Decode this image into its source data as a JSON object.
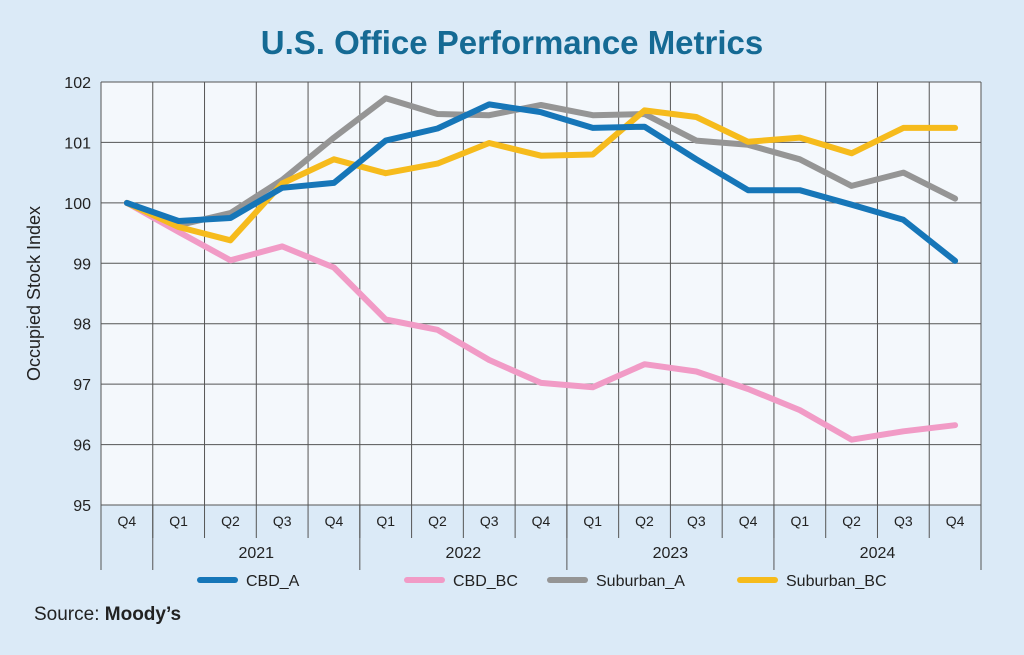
{
  "title": "U.S. Office Performance Metrics",
  "source": {
    "label": "Source:",
    "name": "Moody’s"
  },
  "chart_data": {
    "type": "line",
    "title": "U.S. Office Performance Metrics",
    "ylabel": "Occupied Stock Index",
    "xlabel": "",
    "ylim": [
      95,
      102
    ],
    "yticks": [
      95,
      96,
      97,
      98,
      99,
      100,
      101,
      102
    ],
    "grid": true,
    "legend_position": "bottom",
    "categories": [
      "Q4",
      "Q1",
      "Q2",
      "Q3",
      "Q4",
      "Q1",
      "Q2",
      "Q3",
      "Q4",
      "Q1",
      "Q2",
      "Q3",
      "Q4",
      "Q1",
      "Q2",
      "Q3",
      "Q4"
    ],
    "year_groups": [
      {
        "label": "2021",
        "start": 1,
        "end": 4
      },
      {
        "label": "2022",
        "start": 5,
        "end": 8
      },
      {
        "label": "2023",
        "start": 9,
        "end": 12
      },
      {
        "label": "2024",
        "start": 13,
        "end": 16
      }
    ],
    "series": [
      {
        "name": "CBD_A",
        "color": "#1676b8",
        "values": [
          100.0,
          99.7,
          99.75,
          100.25,
          100.33,
          101.03,
          101.23,
          101.63,
          101.5,
          101.24,
          101.26,
          100.72,
          100.21,
          100.21,
          99.97,
          99.72,
          99.04
        ]
      },
      {
        "name": "CBD_BC",
        "color": "#f19bc6",
        "values": [
          100.0,
          99.52,
          99.05,
          99.28,
          98.93,
          98.07,
          97.9,
          97.4,
          97.02,
          96.95,
          97.33,
          97.21,
          96.92,
          96.57,
          96.08,
          96.22,
          96.32
        ]
      },
      {
        "name": "Suburban_A",
        "color": "#959595",
        "values": [
          100.0,
          99.63,
          99.83,
          100.38,
          101.08,
          101.73,
          101.47,
          101.45,
          101.62,
          101.45,
          101.47,
          101.03,
          100.96,
          100.72,
          100.28,
          100.5,
          100.07
        ]
      },
      {
        "name": "Suburban_BC",
        "color": "#f6bb1c",
        "values": [
          100.0,
          99.6,
          99.38,
          100.32,
          100.72,
          100.49,
          100.65,
          100.99,
          100.78,
          100.8,
          101.53,
          101.42,
          101.01,
          101.08,
          100.82,
          101.24,
          101.24
        ]
      }
    ]
  }
}
